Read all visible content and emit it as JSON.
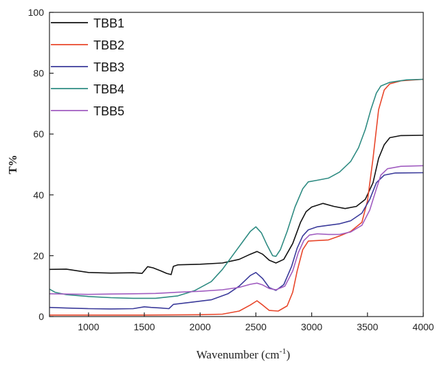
{
  "chart_data": {
    "type": "line",
    "title": "",
    "xlabel": "Wavenumber (cm",
    "xlabel_sup": "-1",
    "xlabel_close": ")",
    "ylabel": "T%",
    "xlim": [
      650,
      4000
    ],
    "ylim": [
      0,
      100
    ],
    "x_ticks": [
      1000,
      1500,
      2000,
      2500,
      3000,
      3500,
      4000
    ],
    "y_ticks": [
      0,
      20,
      40,
      60,
      80,
      100
    ],
    "grid": false,
    "legend": "top-left",
    "series": [
      {
        "name": "TBB1",
        "color": "#111111",
        "points": [
          [
            650,
            15.5
          ],
          [
            800,
            15.6
          ],
          [
            1000,
            14.5
          ],
          [
            1200,
            14.3
          ],
          [
            1400,
            14.4
          ],
          [
            1480,
            14.2
          ],
          [
            1530,
            16.4
          ],
          [
            1580,
            16.0
          ],
          [
            1650,
            15.0
          ],
          [
            1700,
            14.2
          ],
          [
            1740,
            13.8
          ],
          [
            1760,
            16.5
          ],
          [
            1800,
            17.0
          ],
          [
            2000,
            17.2
          ],
          [
            2200,
            17.6
          ],
          [
            2350,
            18.8
          ],
          [
            2450,
            20.5
          ],
          [
            2510,
            21.4
          ],
          [
            2560,
            20.5
          ],
          [
            2620,
            18.5
          ],
          [
            2680,
            17.6
          ],
          [
            2750,
            18.8
          ],
          [
            2830,
            24.0
          ],
          [
            2900,
            31.0
          ],
          [
            2950,
            34.5
          ],
          [
            3000,
            36.0
          ],
          [
            3100,
            37.2
          ],
          [
            3200,
            36.2
          ],
          [
            3300,
            35.5
          ],
          [
            3400,
            36.2
          ],
          [
            3480,
            38.5
          ],
          [
            3550,
            44.0
          ],
          [
            3600,
            52.0
          ],
          [
            3650,
            56.5
          ],
          [
            3700,
            58.8
          ],
          [
            3800,
            59.5
          ],
          [
            4000,
            59.6
          ]
        ]
      },
      {
        "name": "TBB2",
        "color": "#e8462a",
        "points": [
          [
            650,
            0.5
          ],
          [
            1000,
            0.5
          ],
          [
            1500,
            0.5
          ],
          [
            2000,
            0.6
          ],
          [
            2200,
            0.8
          ],
          [
            2350,
            1.8
          ],
          [
            2450,
            3.8
          ],
          [
            2510,
            5.2
          ],
          [
            2560,
            3.8
          ],
          [
            2620,
            2.0
          ],
          [
            2700,
            1.8
          ],
          [
            2780,
            3.5
          ],
          [
            2830,
            8.0
          ],
          [
            2870,
            15.0
          ],
          [
            2920,
            22.0
          ],
          [
            2970,
            24.8
          ],
          [
            3050,
            25.0
          ],
          [
            3150,
            25.2
          ],
          [
            3250,
            26.5
          ],
          [
            3350,
            28.0
          ],
          [
            3450,
            31.0
          ],
          [
            3500,
            38.0
          ],
          [
            3550,
            52.0
          ],
          [
            3600,
            68.0
          ],
          [
            3650,
            74.5
          ],
          [
            3700,
            76.5
          ],
          [
            3800,
            77.5
          ],
          [
            4000,
            78.0
          ]
        ]
      },
      {
        "name": "TBB3",
        "color": "#3a3a9a",
        "points": [
          [
            650,
            3.0
          ],
          [
            800,
            2.8
          ],
          [
            1000,
            2.6
          ],
          [
            1200,
            2.5
          ],
          [
            1400,
            2.6
          ],
          [
            1500,
            3.2
          ],
          [
            1560,
            3.0
          ],
          [
            1650,
            2.8
          ],
          [
            1720,
            2.6
          ],
          [
            1760,
            4.0
          ],
          [
            1900,
            4.6
          ],
          [
            2100,
            5.5
          ],
          [
            2250,
            7.5
          ],
          [
            2350,
            10.0
          ],
          [
            2450,
            13.5
          ],
          [
            2500,
            14.5
          ],
          [
            2560,
            12.5
          ],
          [
            2620,
            9.5
          ],
          [
            2680,
            8.6
          ],
          [
            2750,
            10.5
          ],
          [
            2820,
            16.5
          ],
          [
            2870,
            22.5
          ],
          [
            2920,
            26.5
          ],
          [
            2970,
            28.5
          ],
          [
            3050,
            29.5
          ],
          [
            3150,
            30.0
          ],
          [
            3250,
            30.5
          ],
          [
            3350,
            31.5
          ],
          [
            3450,
            34.0
          ],
          [
            3520,
            38.5
          ],
          [
            3580,
            44.0
          ],
          [
            3650,
            46.5
          ],
          [
            3750,
            47.2
          ],
          [
            4000,
            47.3
          ]
        ]
      },
      {
        "name": "TBB4",
        "color": "#2e8b82",
        "points": [
          [
            650,
            9.0
          ],
          [
            700,
            8.0
          ],
          [
            800,
            7.2
          ],
          [
            1000,
            6.6
          ],
          [
            1200,
            6.2
          ],
          [
            1400,
            6.0
          ],
          [
            1600,
            6.0
          ],
          [
            1800,
            6.8
          ],
          [
            1950,
            8.5
          ],
          [
            2100,
            11.5
          ],
          [
            2200,
            15.5
          ],
          [
            2300,
            20.5
          ],
          [
            2380,
            24.5
          ],
          [
            2450,
            28.0
          ],
          [
            2500,
            29.5
          ],
          [
            2550,
            27.5
          ],
          [
            2600,
            23.5
          ],
          [
            2650,
            20.0
          ],
          [
            2680,
            19.8
          ],
          [
            2720,
            22.0
          ],
          [
            2780,
            28.0
          ],
          [
            2850,
            36.0
          ],
          [
            2920,
            42.0
          ],
          [
            2970,
            44.3
          ],
          [
            3050,
            44.8
          ],
          [
            3150,
            45.5
          ],
          [
            3250,
            47.5
          ],
          [
            3350,
            51.0
          ],
          [
            3420,
            55.5
          ],
          [
            3480,
            61.5
          ],
          [
            3530,
            68.0
          ],
          [
            3580,
            73.5
          ],
          [
            3620,
            75.8
          ],
          [
            3700,
            77.0
          ],
          [
            3850,
            77.8
          ],
          [
            4000,
            78.0
          ]
        ]
      },
      {
        "name": "TBB5",
        "color": "#a05cc0",
        "points": [
          [
            650,
            7.5
          ],
          [
            800,
            7.4
          ],
          [
            1000,
            7.3
          ],
          [
            1200,
            7.4
          ],
          [
            1400,
            7.5
          ],
          [
            1600,
            7.6
          ],
          [
            1800,
            8.0
          ],
          [
            2000,
            8.3
          ],
          [
            2200,
            8.8
          ],
          [
            2350,
            9.6
          ],
          [
            2450,
            10.6
          ],
          [
            2510,
            11.0
          ],
          [
            2560,
            10.4
          ],
          [
            2620,
            9.2
          ],
          [
            2680,
            8.8
          ],
          [
            2760,
            10.0
          ],
          [
            2830,
            15.0
          ],
          [
            2880,
            21.0
          ],
          [
            2930,
            25.0
          ],
          [
            2980,
            26.8
          ],
          [
            3050,
            27.2
          ],
          [
            3150,
            27.0
          ],
          [
            3250,
            27.0
          ],
          [
            3350,
            27.8
          ],
          [
            3450,
            30.0
          ],
          [
            3520,
            35.0
          ],
          [
            3580,
            42.0
          ],
          [
            3620,
            46.5
          ],
          [
            3680,
            48.6
          ],
          [
            3800,
            49.4
          ],
          [
            4000,
            49.6
          ]
        ]
      }
    ]
  }
}
